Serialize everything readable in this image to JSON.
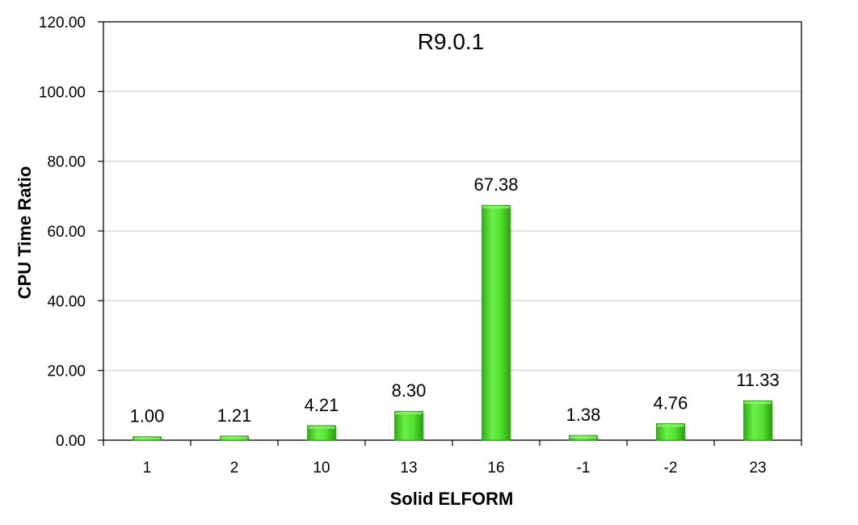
{
  "chart_data": {
    "type": "bar",
    "title": "R9.0.1",
    "xlabel": "Solid ELFORM",
    "ylabel": "CPU Time Ratio",
    "categories": [
      "1",
      "2",
      "10",
      "13",
      "16",
      "-1",
      "-2",
      "23"
    ],
    "series": [
      {
        "values": [
          1.0,
          1.21,
          4.21,
          8.3,
          67.38,
          1.38,
          4.76,
          11.33
        ],
        "data_labels": [
          "1.00",
          "1.21",
          "4.21",
          "8.30",
          "67.38",
          "1.38",
          "4.76",
          "11.33"
        ],
        "color": "#4FE12C"
      }
    ],
    "ylim": [
      0,
      120
    ],
    "yticks": [
      0,
      20,
      40,
      60,
      80,
      100,
      120
    ],
    "ytick_labels": [
      "0.00",
      "20.00",
      "40.00",
      "60.00",
      "80.00",
      "100.00",
      "120.00"
    ],
    "grid": true,
    "legend": "none"
  },
  "colors": {
    "bar_fill": "#4FE12C",
    "bar_dark": "#2E9A16",
    "grid": "#D9D9D9",
    "axis": "#000000"
  }
}
